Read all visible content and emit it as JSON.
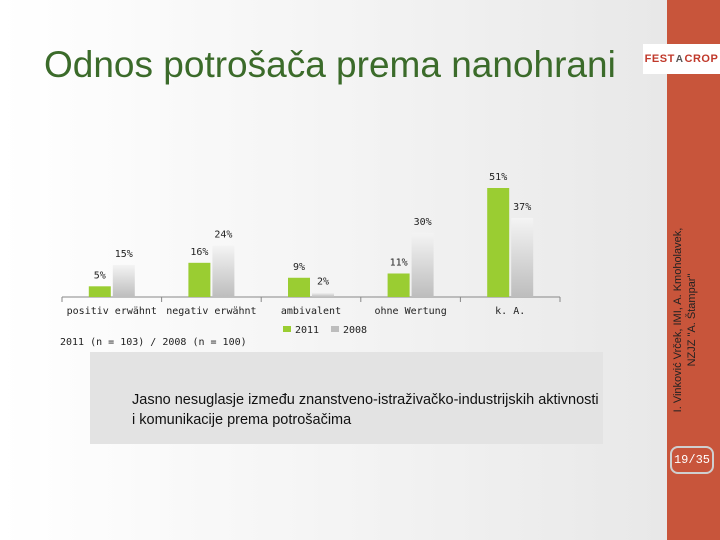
{
  "slide": {
    "title": "Odnos potrošača prema nanohrani",
    "logo_left": "FEST",
    "logo_mark": "A",
    "logo_right": "CROP",
    "side_text": "I. Vinković Vrček, IMI, A. Kmoholavek, NZJZ \"A. Štampar\"",
    "page_number": "19/35",
    "banner_text": "Jasno nesuglasje između znanstveno-istraživačko-industrijskih aktivnosti i komunikacije prema potrošačima",
    "colors": {
      "accent": "#c8553b",
      "title": "#3b6b2a",
      "series_2011": "#9acd32",
      "series_2008": "#d9d9d9"
    }
  },
  "chart_data": {
    "type": "bar",
    "categories": [
      "positiv erwähnt",
      "negativ erwähnt",
      "ambivalent",
      "ohne Wertung",
      "k. A."
    ],
    "series": [
      {
        "name": "2011",
        "values": [
          5,
          16,
          9,
          11,
          51
        ],
        "labels": [
          "5%",
          "16%",
          "9%",
          "11%",
          "51%"
        ]
      },
      {
        "name": "2008",
        "values": [
          15,
          24,
          2,
          30,
          37
        ],
        "labels": [
          "15%",
          "24%",
          "2%",
          "30%",
          "37%"
        ]
      }
    ],
    "note": "2011 (n = 103) / 2008 (n = 100)",
    "ylim": [
      0,
      51
    ],
    "grid": false,
    "legend_position": "bottom"
  }
}
